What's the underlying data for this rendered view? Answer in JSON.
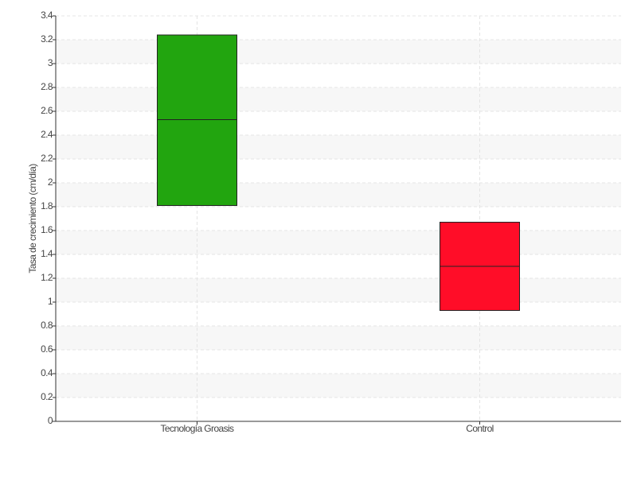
{
  "chart_data": {
    "type": "box",
    "y_label": "Tasa de crecimiento (cm/día)",
    "categories": [
      "Tecnología Groasis",
      "Control"
    ],
    "low": [
      1.81,
      0.93
    ],
    "median": [
      2.53,
      1.3
    ],
    "high": [
      3.24,
      1.67
    ],
    "colors": [
      "#22a50f",
      "#ff0d28"
    ],
    "ylim": [
      0,
      3.4
    ],
    "yticks": [
      0,
      0.2,
      0.4,
      0.6,
      0.8,
      1,
      1.2,
      1.4,
      1.6,
      1.8,
      2,
      2.2,
      2.4,
      2.6,
      2.8,
      3,
      3.2,
      3.4
    ],
    "grid": true
  }
}
